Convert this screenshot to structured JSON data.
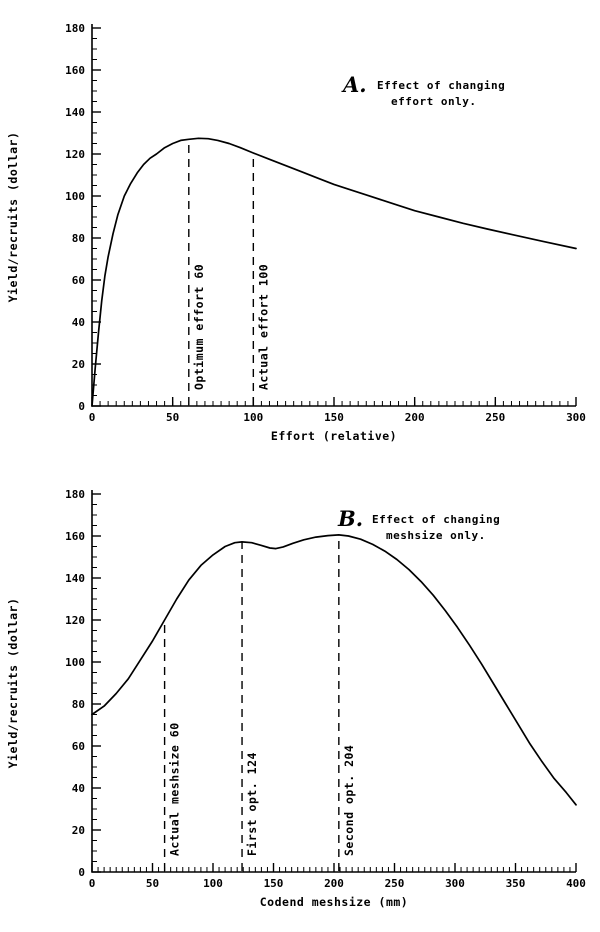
{
  "chart_data": [
    {
      "type": "line",
      "panel": "A",
      "title_letter": "A.",
      "annotation_lines": [
        "Effect of changing",
        "effort only."
      ],
      "xlabel": "Effort (relative)",
      "ylabel": "Yield/recruits (dollar)",
      "xlim": [
        0,
        300
      ],
      "ylim": [
        0,
        180
      ],
      "xticks": [
        0,
        50,
        100,
        150,
        200,
        250,
        300
      ],
      "yticks": [
        0,
        20,
        40,
        60,
        80,
        100,
        120,
        140,
        160,
        180
      ],
      "minor_x_step": 5,
      "minor_y_step": 5,
      "grid": false,
      "line_color": "#000000",
      "series": [
        {
          "name": "yield-per-recruit-vs-effort",
          "points": [
            [
              0,
              0
            ],
            [
              2,
              18
            ],
            [
              4,
              35
            ],
            [
              6,
              50
            ],
            [
              8,
              62
            ],
            [
              10,
              71
            ],
            [
              13,
              82
            ],
            [
              16,
              91
            ],
            [
              20,
              100
            ],
            [
              24,
              106
            ],
            [
              28,
              111
            ],
            [
              32,
              115
            ],
            [
              36,
              118
            ],
            [
              40,
              120
            ],
            [
              45,
              123
            ],
            [
              50,
              125
            ],
            [
              55,
              126.5
            ],
            [
              60,
              127
            ],
            [
              66,
              127.5
            ],
            [
              72,
              127.3
            ],
            [
              78,
              126.5
            ],
            [
              85,
              125
            ],
            [
              92,
              123
            ],
            [
              100,
              120.5
            ],
            [
              110,
              117.5
            ],
            [
              120,
              114.5
            ],
            [
              130,
              111.5
            ],
            [
              140,
              108.5
            ],
            [
              150,
              105.5
            ],
            [
              160,
              103
            ],
            [
              170,
              100.5
            ],
            [
              180,
              98
            ],
            [
              190,
              95.5
            ],
            [
              200,
              93
            ],
            [
              215,
              90
            ],
            [
              230,
              87
            ],
            [
              245,
              84.3
            ],
            [
              260,
              81.7
            ],
            [
              280,
              78.3
            ],
            [
              300,
              75
            ]
          ]
        }
      ],
      "markers": [
        {
          "x": 60,
          "y_top": 127,
          "label": "Optimum effort 60"
        },
        {
          "x": 100,
          "y_top": 120,
          "label": "Actual effort 100"
        }
      ],
      "annotation_pos": {
        "x": 343,
        "y": 92
      }
    },
    {
      "type": "line",
      "panel": "B",
      "title_letter": "B.",
      "annotation_lines": [
        "Effect of changing",
        "meshsize only."
      ],
      "xlabel": "Codend meshsize (mm)",
      "ylabel": "Yield/recruits (dollar)",
      "xlim": [
        0,
        400
      ],
      "ylim": [
        0,
        180
      ],
      "xticks": [
        0,
        50,
        100,
        150,
        200,
        250,
        300,
        350,
        400
      ],
      "yticks": [
        0,
        20,
        40,
        60,
        80,
        100,
        120,
        140,
        160,
        180
      ],
      "minor_x_step": 5,
      "minor_y_step": 5,
      "grid": false,
      "line_color": "#000000",
      "series": [
        {
          "name": "yield-per-recruit-vs-meshsize",
          "points": [
            [
              0,
              75
            ],
            [
              10,
              79
            ],
            [
              20,
              85
            ],
            [
              30,
              92
            ],
            [
              40,
              101
            ],
            [
              50,
              110
            ],
            [
              60,
              120
            ],
            [
              70,
              130
            ],
            [
              80,
              139
            ],
            [
              90,
              146
            ],
            [
              100,
              151
            ],
            [
              110,
              155
            ],
            [
              118,
              156.8
            ],
            [
              124,
              157.2
            ],
            [
              132,
              156.8
            ],
            [
              140,
              155.5
            ],
            [
              147,
              154.3
            ],
            [
              152,
              154
            ],
            [
              158,
              154.8
            ],
            [
              166,
              156.5
            ],
            [
              175,
              158.2
            ],
            [
              185,
              159.5
            ],
            [
              195,
              160.2
            ],
            [
              204,
              160.5
            ],
            [
              212,
              160
            ],
            [
              222,
              158.5
            ],
            [
              232,
              156
            ],
            [
              242,
              152.8
            ],
            [
              252,
              148.8
            ],
            [
              262,
              144
            ],
            [
              272,
              138.3
            ],
            [
              282,
              131.8
            ],
            [
              292,
              124.5
            ],
            [
              302,
              116.5
            ],
            [
              312,
              108
            ],
            [
              322,
              99
            ],
            [
              332,
              89.5
            ],
            [
              342,
              80
            ],
            [
              352,
              70.5
            ],
            [
              362,
              61
            ],
            [
              372,
              52.5
            ],
            [
              382,
              44.5
            ],
            [
              392,
              37.8
            ],
            [
              400,
              32
            ]
          ]
        }
      ],
      "markers": [
        {
          "x": 60,
          "y_top": 120,
          "label": "Actual meshsize 60"
        },
        {
          "x": 124,
          "y_top": 157,
          "label": "First opt. 124"
        },
        {
          "x": 204,
          "y_top": 160,
          "label": "Second opt. 204"
        }
      ],
      "annotation_pos": {
        "x": 338,
        "y": 60
      }
    }
  ]
}
